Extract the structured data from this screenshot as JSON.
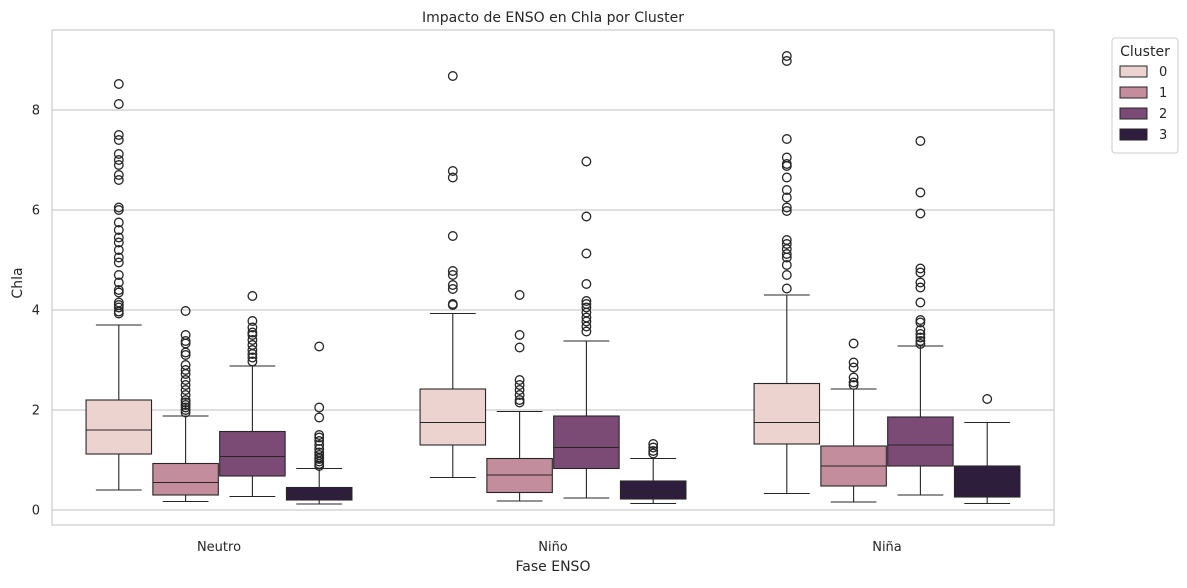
{
  "chart_data": {
    "type": "box",
    "title": "Impacto de ENSO en Chla por Cluster",
    "xlabel": "Fase ENSO",
    "ylabel": "Chla",
    "ylim": [
      -0.3,
      9.6
    ],
    "yticks": [
      0,
      2,
      4,
      6,
      8
    ],
    "grid": "horizontal",
    "legend_placement": "outside-top-right",
    "categories": [
      "Neutro",
      "Niño",
      "Niña"
    ],
    "legend": {
      "title": "Cluster",
      "entries": [
        {
          "label": "0",
          "color": "#ecd3cf"
        },
        {
          "label": "1",
          "color": "#c38d9e"
        },
        {
          "label": "2",
          "color": "#7b4b76"
        },
        {
          "label": "3",
          "color": "#2f1d3d"
        }
      ]
    },
    "series": [
      {
        "name": "0",
        "color": "#ecd3cf",
        "boxes": [
          {
            "category": "Neutro",
            "min": 0.4,
            "q1": 1.12,
            "median": 1.6,
            "q3": 2.2,
            "max": 3.7,
            "outliers": [
              3.93,
              3.97,
              4.05,
              4.1,
              4.15,
              4.35,
              4.4,
              4.55,
              4.7,
              4.95,
              5.05,
              5.2,
              5.35,
              5.45,
              5.6,
              5.75,
              6.0,
              6.05,
              6.6,
              6.7,
              6.9,
              7.0,
              7.12,
              7.4,
              7.5,
              8.12,
              8.52
            ]
          },
          {
            "category": "Niño",
            "min": 0.65,
            "q1": 1.3,
            "median": 1.75,
            "q3": 2.42,
            "max": 3.93,
            "outliers": [
              4.1,
              4.12,
              4.42,
              4.5,
              4.7,
              4.78,
              5.48,
              6.65,
              6.78,
              8.68
            ]
          },
          {
            "category": "Niña",
            "min": 0.33,
            "q1": 1.32,
            "median": 1.75,
            "q3": 2.53,
            "max": 4.3,
            "outliers": [
              4.43,
              4.7,
              4.9,
              5.05,
              5.12,
              5.22,
              5.32,
              5.4,
              5.98,
              6.05,
              6.25,
              6.4,
              6.65,
              6.88,
              6.92,
              7.05,
              7.42,
              8.98,
              9.08
            ]
          }
        ]
      },
      {
        "name": "1",
        "color": "#c38d9e",
        "boxes": [
          {
            "category": "Neutro",
            "min": 0.17,
            "q1": 0.3,
            "median": 0.55,
            "q3": 0.93,
            "max": 1.88,
            "outliers": [
              1.95,
              2.0,
              2.05,
              2.1,
              2.15,
              2.2,
              2.3,
              2.4,
              2.5,
              2.6,
              2.72,
              2.8,
              2.9,
              3.1,
              3.15,
              3.33,
              3.38,
              3.5,
              3.98
            ]
          },
          {
            "category": "Niño",
            "min": 0.18,
            "q1": 0.35,
            "median": 0.7,
            "q3": 1.03,
            "max": 1.97,
            "outliers": [
              2.15,
              2.2,
              2.3,
              2.4,
              2.5,
              2.6,
              3.25,
              3.5,
              4.3
            ]
          },
          {
            "category": "Niña",
            "min": 0.16,
            "q1": 0.48,
            "median": 0.88,
            "q3": 1.28,
            "max": 2.42,
            "outliers": [
              2.5,
              2.55,
              2.65,
              2.85,
              2.95,
              3.33
            ]
          }
        ]
      },
      {
        "name": "2",
        "color": "#7b4b76",
        "boxes": [
          {
            "category": "Neutro",
            "min": 0.27,
            "q1": 0.68,
            "median": 1.07,
            "q3": 1.57,
            "max": 2.88,
            "outliers": [
              2.97,
              3.05,
              3.12,
              3.2,
              3.3,
              3.4,
              3.5,
              3.55,
              3.65,
              3.78,
              4.28
            ]
          },
          {
            "category": "Niño",
            "min": 0.24,
            "q1": 0.83,
            "median": 1.25,
            "q3": 1.88,
            "max": 3.38,
            "outliers": [
              3.57,
              3.67,
              3.77,
              3.85,
              3.95,
              4.05,
              4.12,
              4.18,
              4.52,
              5.13,
              5.87,
              6.97
            ]
          },
          {
            "category": "Niña",
            "min": 0.3,
            "q1": 0.88,
            "median": 1.3,
            "q3": 1.86,
            "max": 3.28,
            "outliers": [
              3.32,
              3.38,
              3.45,
              3.52,
              3.6,
              3.75,
              3.8,
              4.15,
              4.45,
              4.55,
              4.75,
              4.83,
              5.93,
              6.35,
              7.38
            ]
          }
        ]
      },
      {
        "name": "3",
        "color": "#2f1d3d",
        "boxes": [
          {
            "category": "Neutro",
            "min": 0.12,
            "q1": 0.2,
            "median": 0.3,
            "q3": 0.45,
            "max": 0.83,
            "outliers": [
              0.88,
              0.92,
              0.97,
              1.02,
              1.05,
              1.1,
              1.15,
              1.22,
              1.3,
              1.38,
              1.45,
              1.5,
              1.85,
              2.05,
              3.27
            ]
          },
          {
            "category": "Niño",
            "min": 0.13,
            "q1": 0.22,
            "median": 0.35,
            "q3": 0.58,
            "max": 1.03,
            "outliers": [
              1.13,
              1.18,
              1.25,
              1.32
            ]
          },
          {
            "category": "Niña",
            "min": 0.13,
            "q1": 0.26,
            "median": 0.56,
            "q3": 0.88,
            "max": 1.75,
            "outliers": [
              2.22
            ]
          }
        ]
      }
    ]
  }
}
